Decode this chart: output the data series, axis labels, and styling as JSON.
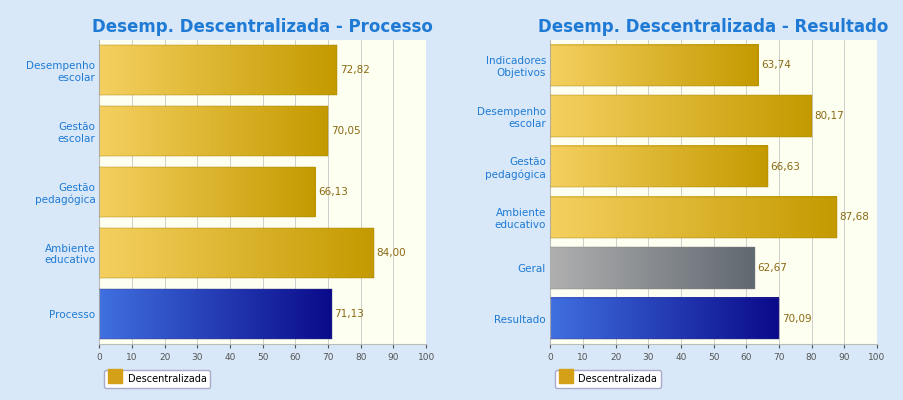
{
  "left_title": "Desemp. Descentralizada - Processo",
  "right_title": "Desemp. Descentralizada - Resultado",
  "left_categories": [
    "Desempenho\nescolar",
    "Gestão\nescolar",
    "Gestão\npedagógica",
    "Ambiente\neducativo",
    "Processo"
  ],
  "left_values": [
    72.82,
    70.05,
    66.13,
    84.0,
    71.13
  ],
  "left_colors": [
    "gold",
    "gold",
    "gold",
    "gold",
    "blue"
  ],
  "right_categories": [
    "Indicadores\nObjetivos",
    "Desempenho\nescolar",
    "Gestão\npedagógica",
    "Ambiente\neducativo",
    "Geral",
    "Resultado"
  ],
  "right_values": [
    63.74,
    80.17,
    66.63,
    87.68,
    62.67,
    70.09
  ],
  "right_colors": [
    "gold",
    "gold",
    "gold",
    "gold",
    "gray",
    "blue"
  ],
  "left_value_labels": [
    "72,82",
    "70,05",
    "66,13",
    "84,00",
    "71,13"
  ],
  "right_value_labels": [
    "63,74",
    "80,17",
    "66,63",
    "87,68",
    "62,67",
    "70,09"
  ],
  "xlim": [
    0,
    100
  ],
  "xticks": [
    0,
    10,
    20,
    30,
    40,
    50,
    60,
    70,
    80,
    90,
    100
  ],
  "legend_label": "Descentralizada",
  "legend_color_gold": "#D4A017",
  "bg_color": "#D8E8F8",
  "plot_bg_color": "#FDFFF0",
  "title_color": "#1E7AD4",
  "label_color": "#1E7AD4",
  "value_label_color": "#8B6914",
  "blue_bar_color_start": "#4070E0",
  "blue_bar_color_end": "#0A0A8A",
  "gold_bar_color_start": "#F5D060",
  "gold_bar_color_end": "#C49A00",
  "gray_bar_color_start": "#B0B0B0",
  "gray_bar_color_end": "#606870",
  "title_fontsize": 12,
  "label_fontsize": 7.5,
  "value_fontsize": 7.5,
  "bar_height": 0.82
}
